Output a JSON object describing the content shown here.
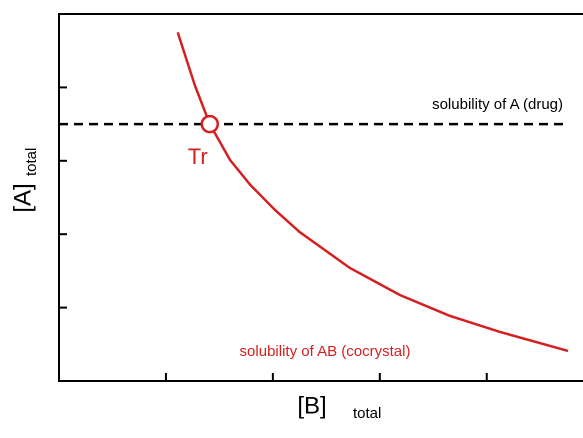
{
  "chart_data": {
    "type": "line",
    "xlabel": "[B]",
    "xlabel_subscript": "total",
    "ylabel": "[A]",
    "ylabel_subscript": "total",
    "xlim": [
      0,
      4.9
    ],
    "xticks": [
      1,
      2,
      3,
      4
    ],
    "ylim": [
      0,
      5
    ],
    "yticks": [
      1,
      2,
      3,
      4
    ],
    "series": [
      {
        "color": "#d42020",
        "x": [
          1.11,
          1.27,
          1.41,
          1.6,
          1.79,
          2.02,
          2.25,
          2.72,
          3.19,
          3.65,
          4.12,
          4.76
        ],
        "values": [
          4.75,
          4.03,
          3.5,
          3.01,
          2.67,
          2.33,
          2.03,
          1.54,
          1.17,
          0.89,
          0.67,
          0.41
        ]
      }
    ],
    "hline": {
      "y": 3.5,
      "color": "#000000",
      "dashed": true,
      "label": "solubility of A (drug)"
    },
    "curve_label": "solubility of AB (cocrystal)",
    "point": {
      "x": 1.41,
      "y": 3.5,
      "label": "Tr",
      "color": "#d42020"
    }
  }
}
